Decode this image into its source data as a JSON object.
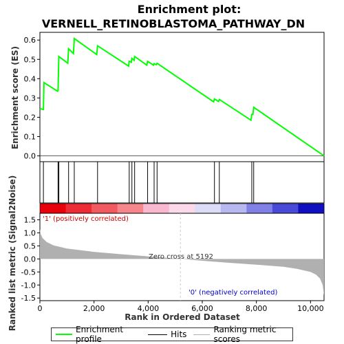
{
  "chart_data": {
    "type": "line",
    "title_line1": "Enrichment plot:",
    "title_line2": "VERNELL_RETINOBLASTOMA_PATHWAY_DN",
    "colors": {
      "es_line": "#00ff00",
      "hit_line": "#000000",
      "ranked_fill": "#b0b0b0",
      "zero_line": "#cccccc",
      "pos_label": "#cc0000",
      "neg_label": "#0000cc"
    },
    "es_panel": {
      "ylabel": "Enrichment score (ES)",
      "ylim": [
        -0.03,
        0.64
      ],
      "yticks": [
        0.0,
        0.1,
        0.2,
        0.3,
        0.4,
        0.5,
        0.6
      ],
      "ytick_labels": [
        "0.0",
        "0.1",
        "0.2",
        "0.3",
        "0.4",
        "0.5",
        "0.6"
      ],
      "series": [
        {
          "name": "Enrichment profile",
          "x": [
            0,
            130,
            150,
            650,
            670,
            700,
            1030,
            1060,
            1240,
            1270,
            2100,
            2130,
            3280,
            3300,
            3380,
            3400,
            3480,
            3500,
            3950,
            3980,
            4200,
            4220,
            4300,
            4330,
            6420,
            6450,
            6600,
            6630,
            7800,
            7830,
            7870,
            7900,
            10500
          ],
          "y": [
            0.245,
            0.24,
            0.38,
            0.335,
            0.34,
            0.515,
            0.48,
            0.555,
            0.53,
            0.608,
            0.525,
            0.57,
            0.465,
            0.49,
            0.485,
            0.505,
            0.495,
            0.515,
            0.47,
            0.49,
            0.47,
            0.478,
            0.472,
            0.48,
            0.28,
            0.295,
            0.282,
            0.292,
            0.185,
            0.215,
            0.215,
            0.252,
            0.0
          ]
        }
      ]
    },
    "hits": [
      130,
      670,
      700,
      1060,
      1270,
      2130,
      3300,
      3400,
      3500,
      3980,
      4220,
      4330,
      6450,
      6630,
      7830,
      7900
    ],
    "ranked_panel": {
      "ylabel": "Ranked list metric (Signal2Noise)",
      "xlabel": "Rank in Ordered Dataset",
      "ylim": [
        -1.6,
        1.75
      ],
      "yticks": [
        -1.5,
        -1.0,
        -0.5,
        0.0,
        0.5,
        1.0,
        1.5
      ],
      "ytick_labels": [
        "-1.5",
        "-1.0",
        "-0.5",
        "0.0",
        "0.5",
        "1.0",
        "1.5"
      ],
      "x": [
        0,
        30,
        100,
        250,
        500,
        1000,
        2000,
        3000,
        4000,
        5192,
        6000,
        7000,
        8000,
        9000,
        9500,
        10000,
        10200,
        10350,
        10450,
        10500
      ],
      "y": [
        1.15,
        0.95,
        0.8,
        0.65,
        0.52,
        0.4,
        0.27,
        0.18,
        0.1,
        0.0,
        -0.07,
        -0.15,
        -0.22,
        -0.3,
        -0.38,
        -0.5,
        -0.6,
        -0.75,
        -1.0,
        -1.4
      ],
      "zero_cross_label": "Zero cross at 5192",
      "zero_cross": 5192,
      "pos_label": "'1' (positively correlated)",
      "neg_label": "'0' (negatively correlated)"
    },
    "xlim": [
      0,
      10500
    ],
    "xticks": [
      0,
      2000,
      4000,
      6000,
      8000,
      10000
    ],
    "xtick_labels": [
      "0",
      "2,000",
      "4,000",
      "6,000",
      "8,000",
      "10,000"
    ],
    "heatmap_colors": [
      "#e8000a",
      "#ee2a36",
      "#f25a62",
      "#f5868c",
      "#f9b7d0",
      "#fbd8ea",
      "#dcdcf6",
      "#b8b8f0",
      "#8080e6",
      "#4a4ad8",
      "#1010c0"
    ],
    "legend": [
      "Enrichment profile",
      "Hits",
      "Ranking metric scores"
    ]
  }
}
